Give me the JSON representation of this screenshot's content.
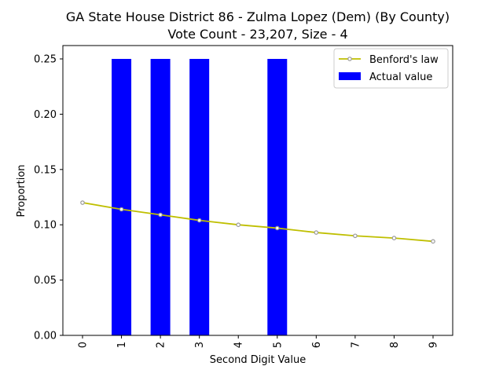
{
  "chart_data": {
    "type": "bar",
    "title": "GA State House District 86 - Zulma Lopez (Dem) (By County)",
    "subtitle": "Vote Count - 23,207, Size - 4",
    "xlabel": "Second Digit Value",
    "ylabel": "Proportion",
    "categories": [
      "0",
      "1",
      "2",
      "3",
      "4",
      "5",
      "6",
      "7",
      "8",
      "9"
    ],
    "ylim": [
      0,
      0.25
    ],
    "yticks": [
      "0.00",
      "0.05",
      "0.10",
      "0.15",
      "0.20",
      "0.25"
    ],
    "grid": false,
    "legend_position": "top-right",
    "series": [
      {
        "name": "Benford's law",
        "type": "line",
        "color": "#bfbf00",
        "marker_color": "#999999",
        "values": [
          0.12,
          0.114,
          0.109,
          0.104,
          0.1,
          0.097,
          0.093,
          0.09,
          0.088,
          0.085
        ]
      },
      {
        "name": "Actual value",
        "type": "bar",
        "color": "#0000ff",
        "values": [
          0.0,
          0.25,
          0.25,
          0.25,
          0.0,
          0.25,
          0.0,
          0.0,
          0.0,
          0.0
        ]
      }
    ]
  }
}
